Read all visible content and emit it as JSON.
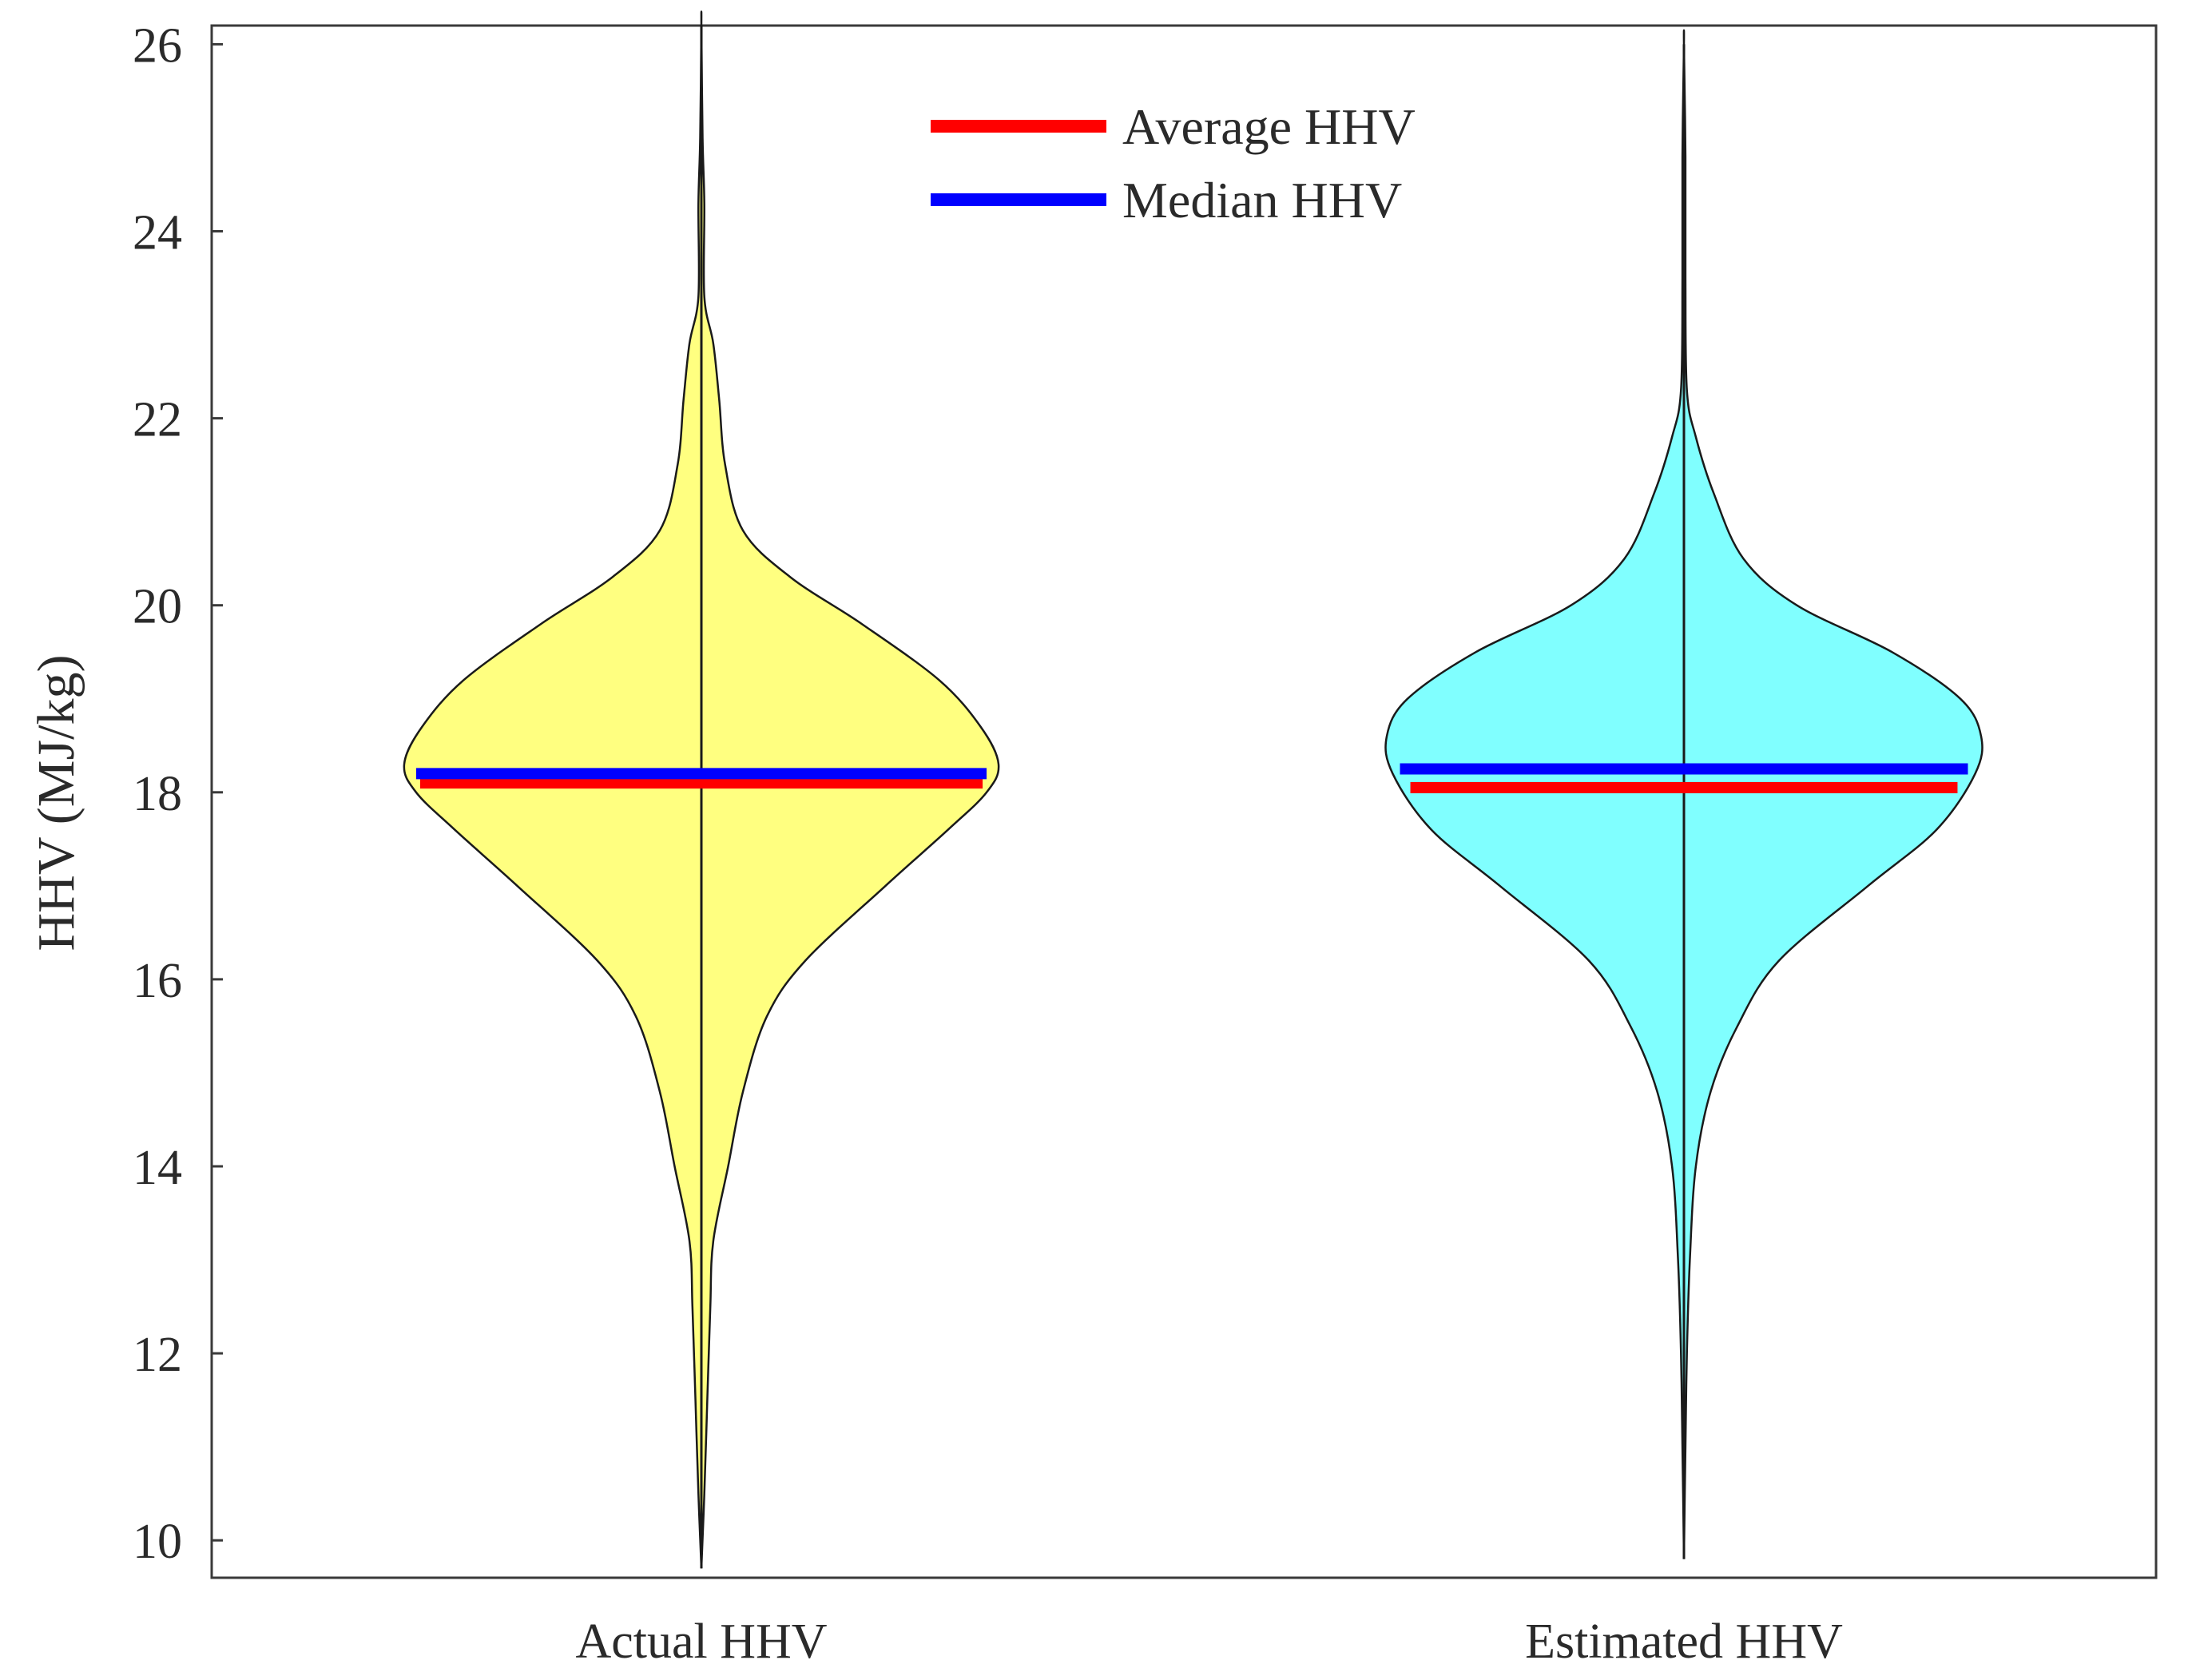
{
  "chart_data": {
    "type": "violin",
    "title": "",
    "xlabel": "",
    "ylabel": "HHV (MJ/kg)",
    "ylim": [
      9.6,
      26.2
    ],
    "yticks": [
      "10",
      "12",
      "14",
      "16",
      "18",
      "20",
      "22",
      "24",
      "26"
    ],
    "categories": [
      "Actual HHV",
      "Estimated HHV"
    ],
    "legend": {
      "placement": "top-center",
      "items": [
        {
          "label": "Average HHV",
          "color": "#ff0000"
        },
        {
          "label": "Median HHV",
          "color": "#0000ff"
        }
      ]
    },
    "series": [
      {
        "name": "Actual HHV",
        "fill": "#ffff80",
        "min": 9.7,
        "max": 26.2,
        "mean": 18.1,
        "median": 18.2,
        "density": [
          [
            9.7,
            0.0
          ],
          [
            10.5,
            0.01
          ],
          [
            11.5,
            0.02
          ],
          [
            12.5,
            0.03
          ],
          [
            13.2,
            0.04
          ],
          [
            14.0,
            0.09
          ],
          [
            14.8,
            0.14
          ],
          [
            15.6,
            0.22
          ],
          [
            16.2,
            0.35
          ],
          [
            17.0,
            0.62
          ],
          [
            17.6,
            0.83
          ],
          [
            18.0,
            0.96
          ],
          [
            18.3,
            1.0
          ],
          [
            18.7,
            0.94
          ],
          [
            19.2,
            0.8
          ],
          [
            19.8,
            0.54
          ],
          [
            20.3,
            0.3
          ],
          [
            20.8,
            0.14
          ],
          [
            21.5,
            0.08
          ],
          [
            22.2,
            0.06
          ],
          [
            22.8,
            0.04
          ],
          [
            23.3,
            0.01
          ],
          [
            24.3,
            0.01
          ],
          [
            25.0,
            0.004
          ],
          [
            26.2,
            0.0
          ]
        ]
      },
      {
        "name": "Estimated HHV",
        "fill": "#80ffff",
        "min": 9.8,
        "max": 26.0,
        "mean": 18.05,
        "median": 18.25,
        "density": [
          [
            9.8,
            0.0
          ],
          [
            11.0,
            0.005
          ],
          [
            12.0,
            0.01
          ],
          [
            13.0,
            0.02
          ],
          [
            14.0,
            0.04
          ],
          [
            14.8,
            0.09
          ],
          [
            15.5,
            0.18
          ],
          [
            16.2,
            0.32
          ],
          [
            17.0,
            0.62
          ],
          [
            17.6,
            0.85
          ],
          [
            18.2,
            0.98
          ],
          [
            18.6,
            1.0
          ],
          [
            19.0,
            0.93
          ],
          [
            19.5,
            0.7
          ],
          [
            20.0,
            0.38
          ],
          [
            20.5,
            0.2
          ],
          [
            21.2,
            0.1
          ],
          [
            21.8,
            0.04
          ],
          [
            22.3,
            0.01
          ],
          [
            23.5,
            0.005
          ],
          [
            24.8,
            0.005
          ],
          [
            26.0,
            0.0
          ]
        ]
      }
    ]
  }
}
